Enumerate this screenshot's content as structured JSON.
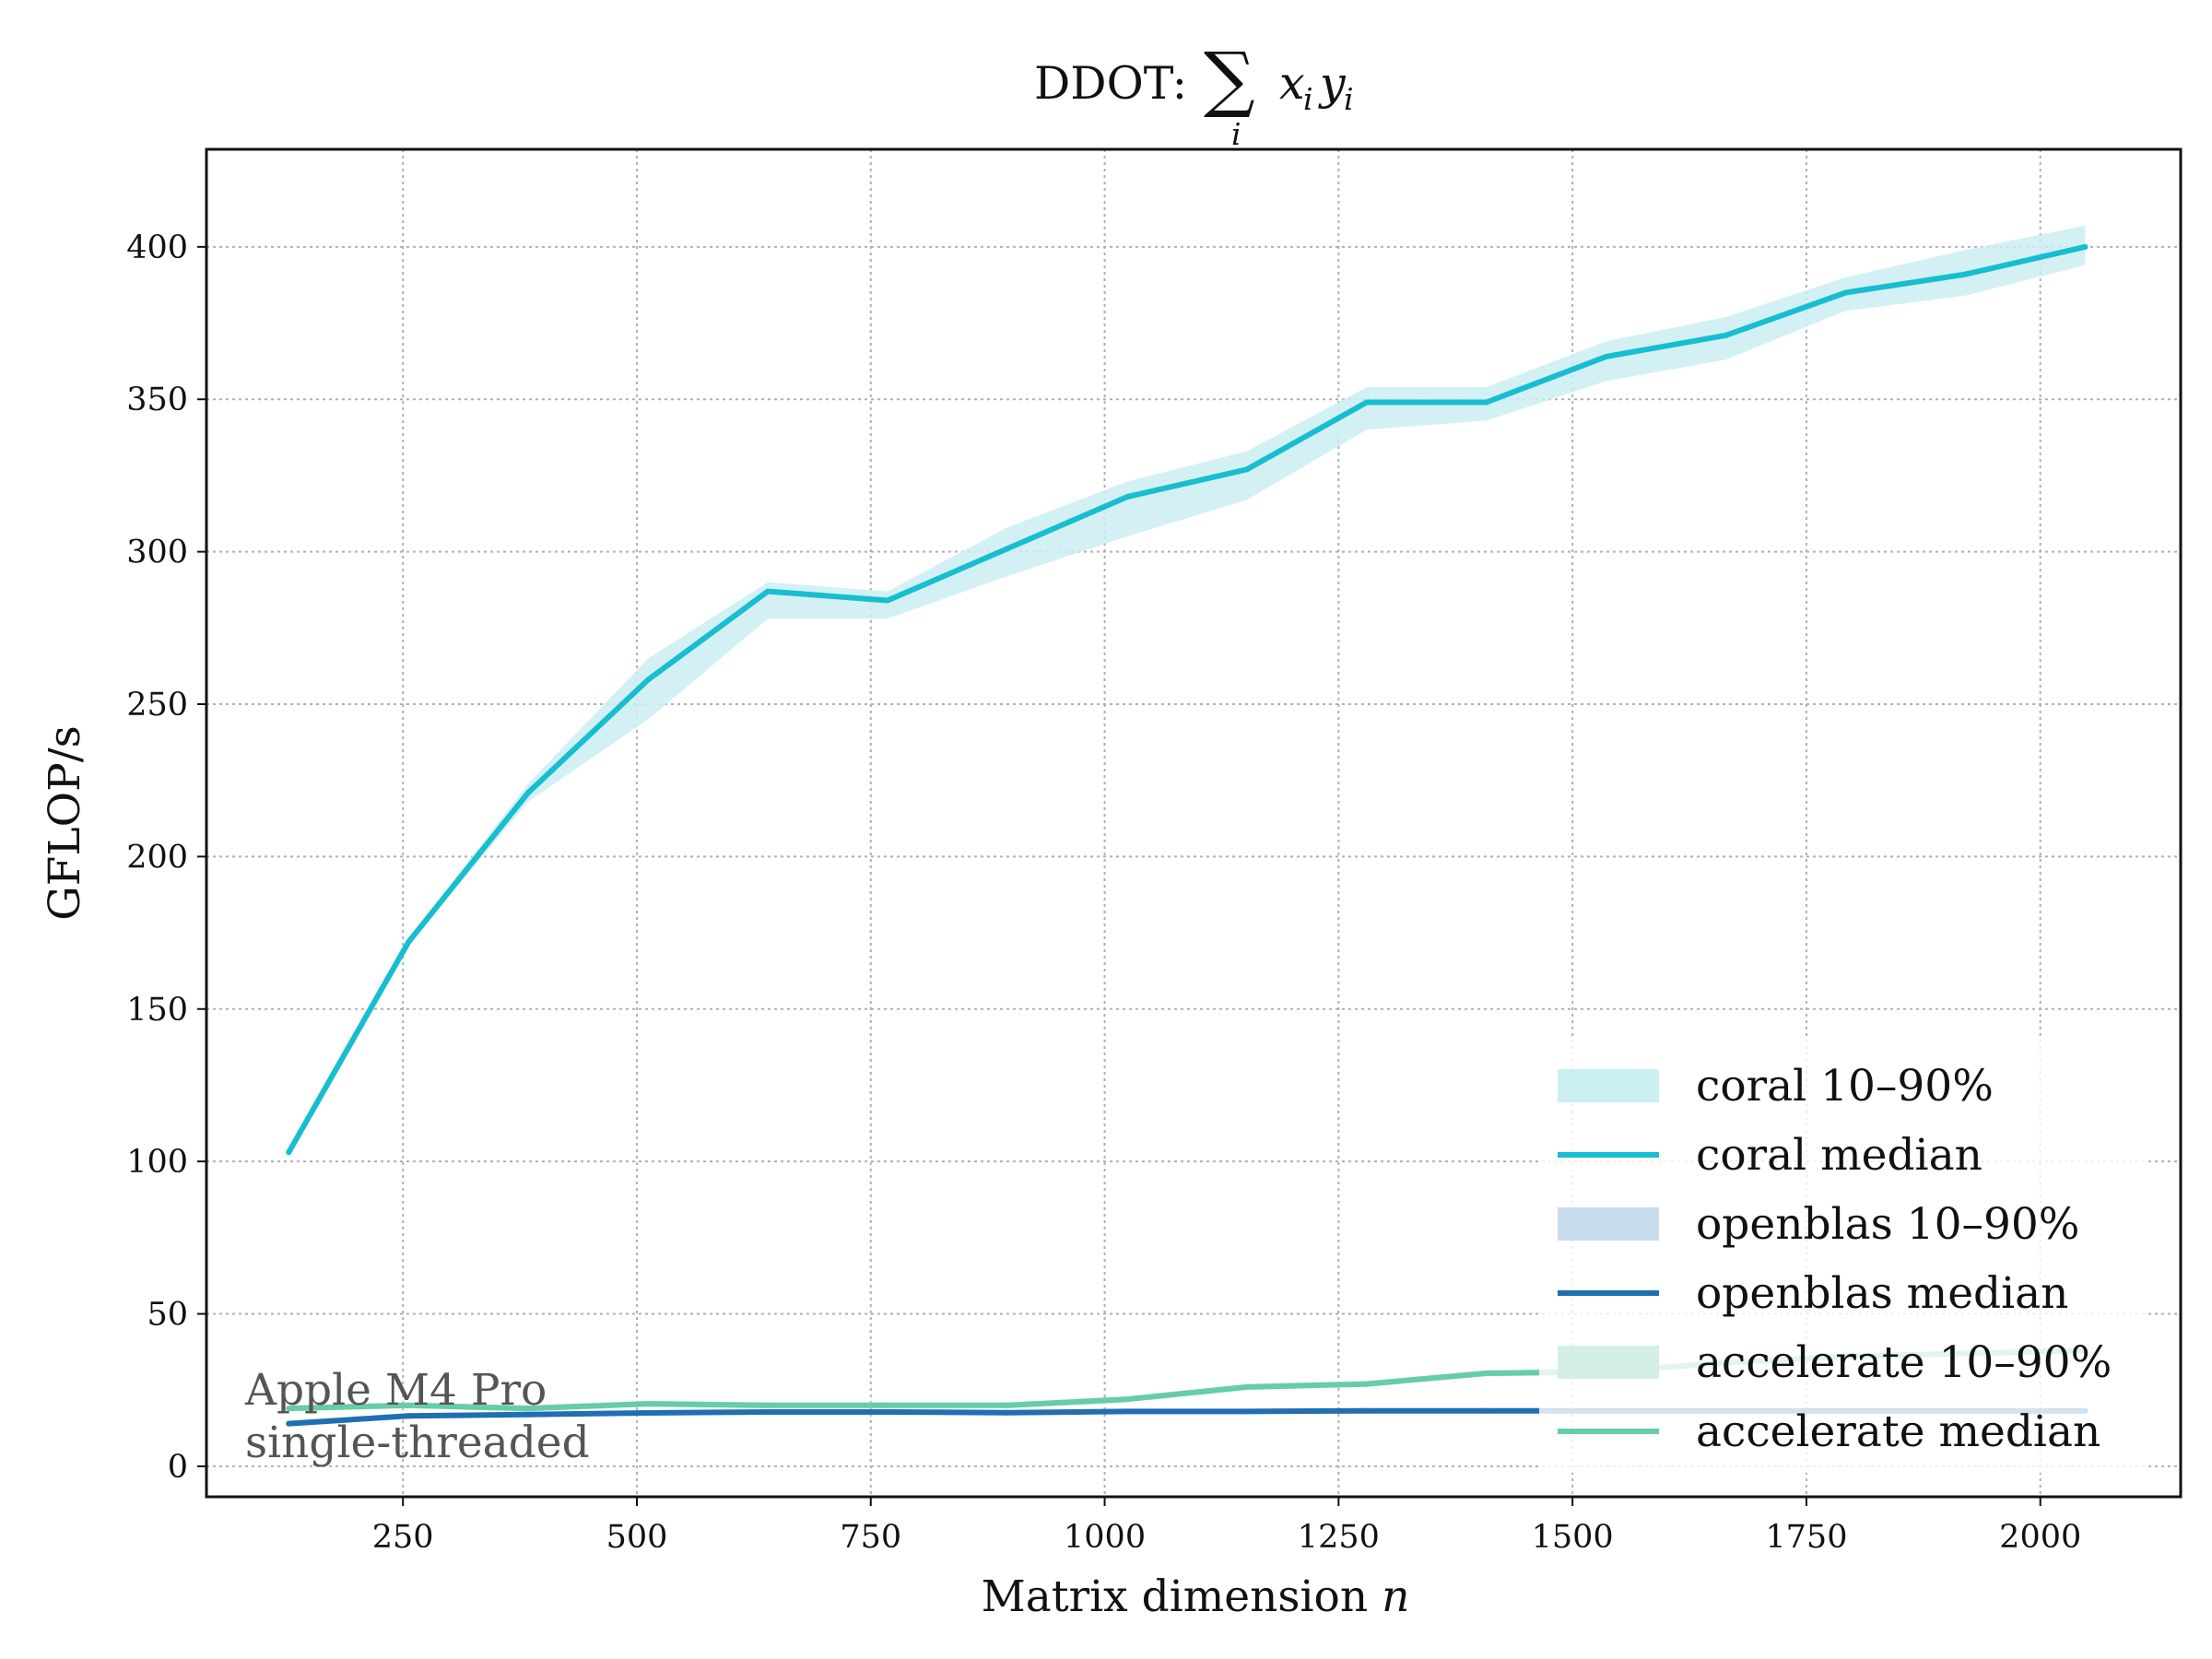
{
  "chart_data": {
    "type": "line",
    "title_prefix": "DDOT:",
    "title_math": {
      "operator": "∑",
      "subscript": "i",
      "expression": [
        "x",
        "i",
        "y",
        "i"
      ]
    },
    "xlabel": "Matrix dimension",
    "xlabel_var": "n",
    "ylabel": "GFLOP/s",
    "xlim": [
      40,
      2150
    ],
    "ylim": [
      -10,
      432
    ],
    "xticks": [
      250,
      500,
      750,
      1000,
      1250,
      1500,
      1750,
      2000
    ],
    "yticks": [
      0,
      50,
      100,
      150,
      200,
      250,
      300,
      350,
      400
    ],
    "grid": true,
    "legend_position": "lower-right",
    "annotation": [
      "Apple M4 Pro",
      "single-threaded"
    ],
    "x": [
      128,
      256,
      384,
      512,
      640,
      768,
      896,
      1024,
      1152,
      1280,
      1408,
      1536,
      1664,
      1792,
      1920,
      2048
    ],
    "series": [
      {
        "name": "coral median",
        "band_name": "coral 10–90%",
        "color": "#17becf",
        "band_color": "#cbeff3",
        "median": [
          103,
          172,
          221,
          258,
          287,
          284,
          301,
          318,
          327,
          349,
          349,
          364,
          371,
          385,
          391,
          400
        ],
        "p10": [
          102,
          171,
          218,
          245,
          278,
          278,
          292,
          305,
          317,
          340,
          343,
          356,
          363,
          379,
          384,
          394
        ],
        "p90": [
          104,
          173,
          224,
          265,
          290,
          287,
          308,
          323,
          333,
          354,
          354,
          369,
          377,
          390,
          399,
          407
        ]
      },
      {
        "name": "openblas median",
        "band_name": "openblas 10–90%",
        "color": "#1f6fb3",
        "band_color": "#c9dced",
        "median": [
          14,
          16.5,
          17,
          17.5,
          17.8,
          17.8,
          17.6,
          18,
          18,
          18.2,
          18.2,
          18.2,
          18.2,
          18.2,
          18.2,
          18.2
        ],
        "p10": [
          13,
          15.8,
          16.4,
          16.9,
          17.2,
          17.2,
          17,
          17.4,
          17.4,
          17.6,
          17.6,
          17.6,
          17.6,
          17.6,
          17.6,
          17.6
        ],
        "p90": [
          15,
          17.2,
          17.6,
          18.1,
          18.4,
          18.4,
          18.2,
          18.6,
          18.6,
          18.8,
          18.8,
          18.8,
          18.8,
          18.8,
          18.8,
          18.8
        ]
      },
      {
        "name": "accelerate median",
        "band_name": "accelerate 10–90%",
        "color": "#66cda5",
        "band_color": "#d4f0e4",
        "median": [
          19,
          20,
          19,
          20.5,
          20,
          20,
          20,
          22,
          26,
          27,
          30.5,
          31,
          34,
          36,
          37,
          38
        ],
        "p10": [
          18,
          19,
          18,
          19.5,
          19,
          19,
          19,
          21,
          25,
          26,
          29.5,
          30,
          33,
          35,
          36,
          37
        ],
        "p90": [
          20,
          21,
          20,
          21.5,
          21,
          21,
          21,
          23,
          27,
          28,
          31.5,
          32,
          35,
          37,
          38,
          39
        ]
      }
    ]
  }
}
